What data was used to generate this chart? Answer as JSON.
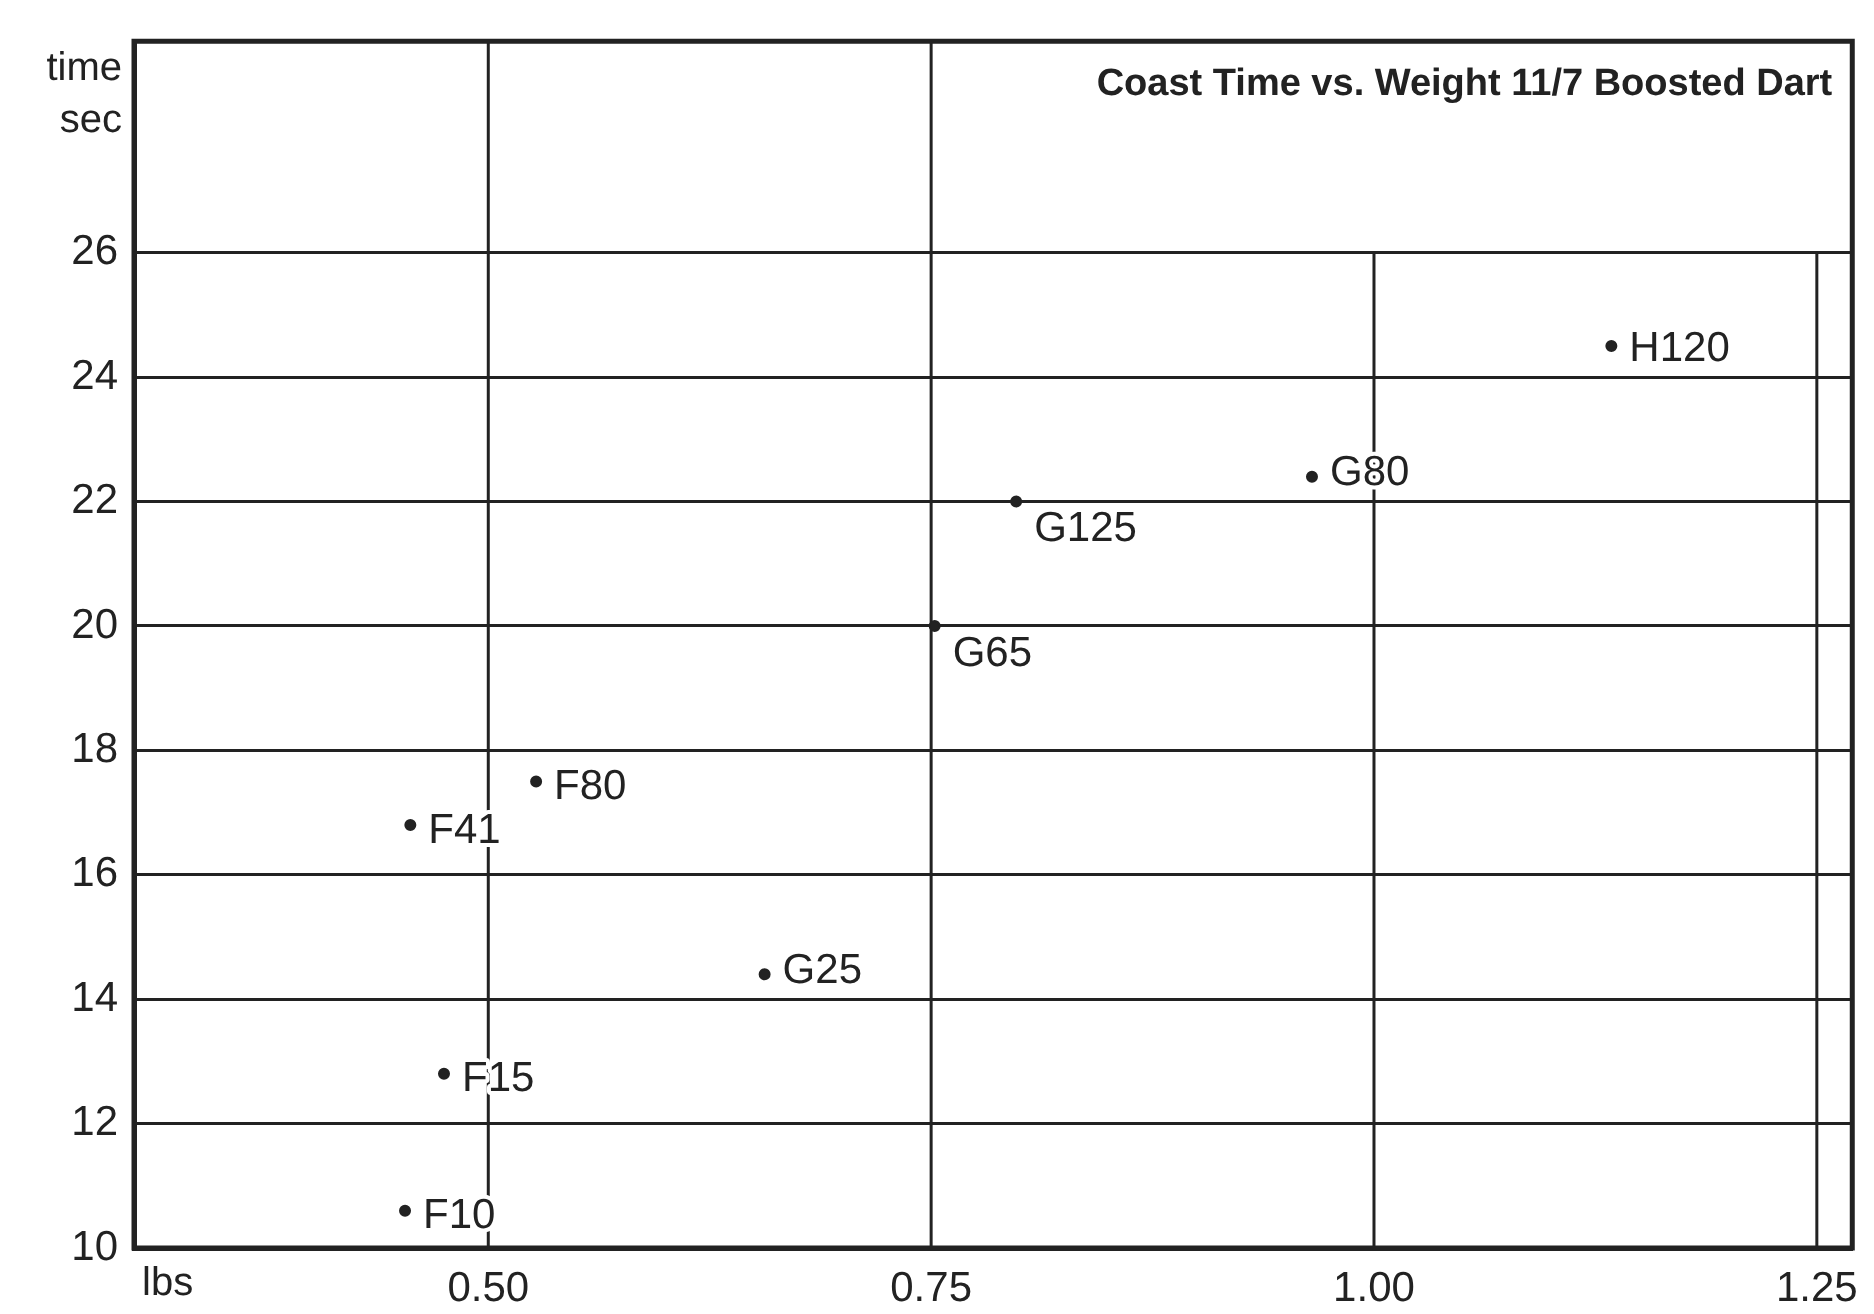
{
  "chart_data": {
    "type": "scatter",
    "title": "Coast Time vs. Weight 11/7 Boosted Dart",
    "xlabel": "lbs",
    "ylabel": "time sec",
    "series": [
      {
        "color": "#222222",
        "x": [
          0.453,
          0.475,
          0.456,
          0.527,
          0.656,
          0.752,
          0.798,
          0.965,
          1.134
        ],
        "values": [
          10.6,
          12.8,
          16.8,
          17.5,
          14.4,
          20.0,
          22.0,
          22.4,
          24.5
        ]
      }
    ],
    "annotations": [
      {
        "text": "F10",
        "x": 0.453,
        "y": 10.6
      },
      {
        "text": "F15",
        "x": 0.475,
        "y": 12.8
      },
      {
        "text": "F41",
        "x": 0.456,
        "y": 16.8
      },
      {
        "text": "F80",
        "x": 0.527,
        "y": 17.5
      },
      {
        "text": "G25",
        "x": 0.656,
        "y": 14.4
      },
      {
        "text": "G65",
        "x": 0.752,
        "y": 20.0
      },
      {
        "text": "G125",
        "x": 0.798,
        "y": 22.0
      },
      {
        "text": "G80",
        "x": 0.965,
        "y": 22.4
      },
      {
        "text": "H120",
        "x": 1.134,
        "y": 24.5
      }
    ],
    "xlim": [
      0.3,
      1.27
    ],
    "xticks": [
      {
        "value": 0.5,
        "label": "0.50"
      },
      {
        "value": 0.75,
        "label": "0.75"
      },
      {
        "value": 1.0,
        "label": "1.00"
      },
      {
        "value": 1.25,
        "label": "1.25"
      }
    ],
    "ylim": [
      10,
      29.4
    ],
    "yticks": [
      10,
      12,
      14,
      16,
      18,
      20,
      22,
      24,
      26
    ],
    "grid": true,
    "legend": false,
    "marker": "circle"
  }
}
